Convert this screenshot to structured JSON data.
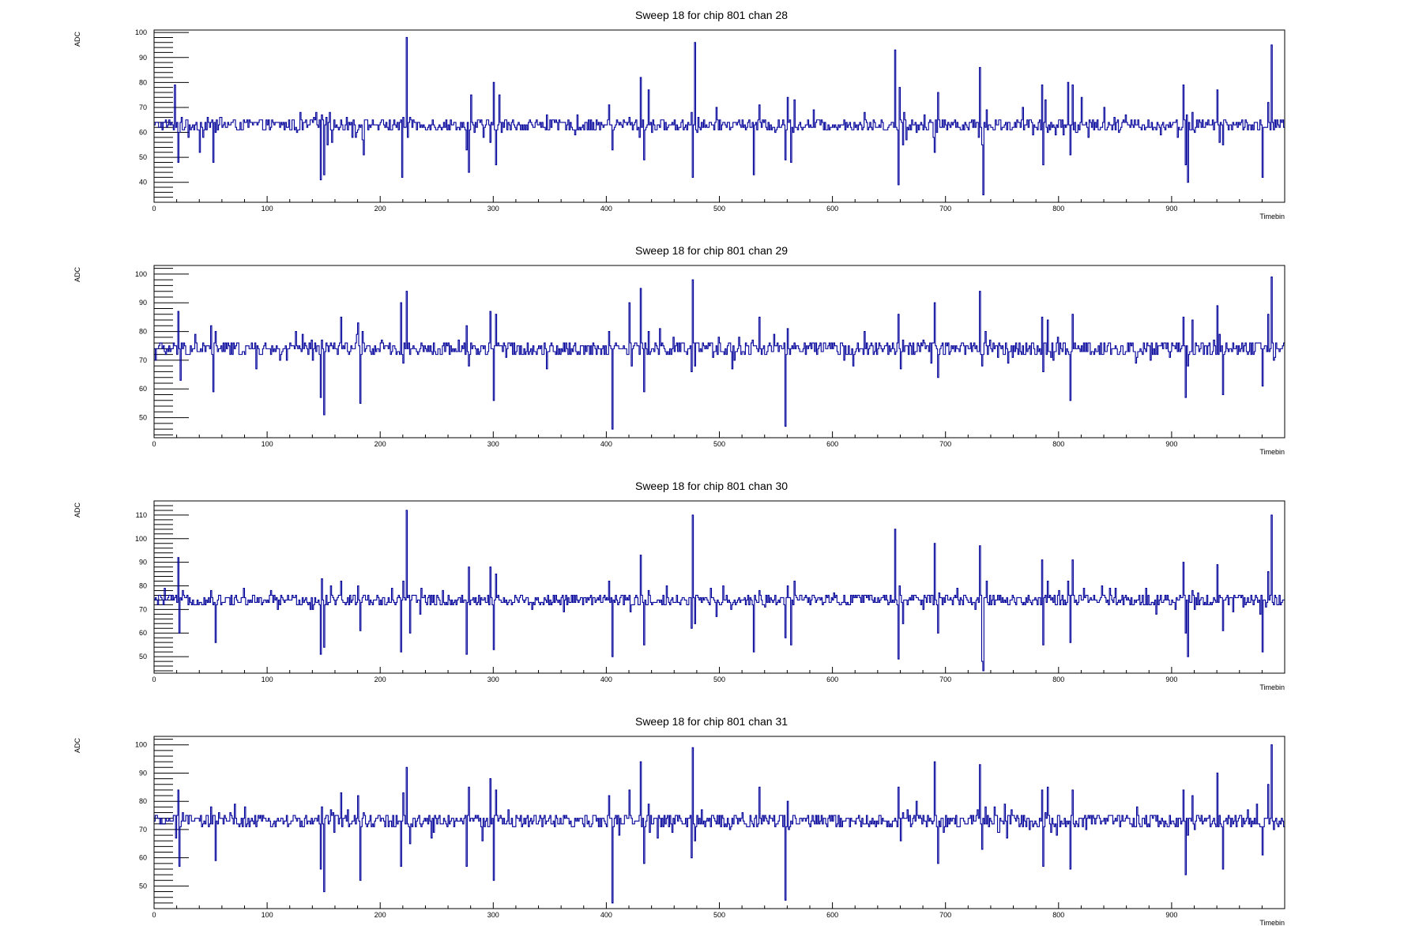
{
  "chart_data": [
    {
      "type": "line",
      "title": "Sweep 18 for chip 801 chan 28",
      "xlabel": "Timebin",
      "ylabel": "ADC",
      "xlim": [
        0,
        1000
      ],
      "ylim": [
        32,
        101
      ],
      "xticks": [
        0,
        100,
        200,
        300,
        400,
        500,
        600,
        700,
        800,
        900
      ],
      "yticks": [
        40,
        50,
        60,
        70,
        80,
        90,
        100
      ],
      "baseline": 63,
      "noise": 1.5,
      "series": [
        {
          "x": [
            0,
            18,
            21,
            22,
            24,
            30,
            40,
            43,
            47,
            52,
            54,
            59,
            62,
            100,
            147,
            148,
            150,
            152,
            153,
            155,
            170,
            178,
            185,
            200,
            218,
            219,
            220,
            223,
            224,
            226,
            230,
            276,
            278,
            280,
            283,
            297,
            300,
            302,
            305,
            307,
            400,
            402,
            405,
            410,
            420,
            430,
            433,
            437,
            440,
            475,
            476,
            478,
            480,
            530,
            535,
            558,
            560,
            563,
            566,
            570,
            600,
            655,
            658,
            659,
            662,
            664,
            690,
            693,
            700,
            730,
            732,
            733,
            736,
            740,
            785,
            786,
            788,
            790,
            800,
            808,
            810,
            812,
            815,
            820,
            900,
            910,
            912,
            914,
            918,
            920,
            940,
            945,
            980,
            985,
            988,
            990
          ],
          "y": [
            63,
            79,
            48,
            60,
            66,
            58,
            52,
            58,
            66,
            48,
            60,
            66,
            64,
            63,
            41,
            67,
            43,
            66,
            55,
            68,
            66,
            58,
            51,
            64,
            65,
            42,
            66,
            98,
            58,
            66,
            64,
            53,
            44,
            75,
            60,
            56,
            80,
            47,
            75,
            60,
            63,
            71,
            53,
            64,
            66,
            82,
            49,
            77,
            60,
            68,
            42,
            96,
            60,
            43,
            71,
            49,
            74,
            48,
            73,
            63,
            63,
            93,
            39,
            78,
            55,
            65,
            52,
            76,
            63,
            86,
            55,
            35,
            69,
            62,
            79,
            47,
            73,
            60,
            65,
            80,
            51,
            79,
            60,
            74,
            63,
            79,
            47,
            40,
            68,
            60,
            77,
            55,
            42,
            72,
            95,
            61
          ]
        }
      ]
    },
    {
      "type": "line",
      "title": "Sweep 18 for chip 801 chan 29",
      "xlabel": "Timebin",
      "ylabel": "ADC",
      "xlim": [
        0,
        1000
      ],
      "ylim": [
        43,
        103
      ],
      "xticks": [
        0,
        100,
        200,
        300,
        400,
        500,
        600,
        700,
        800,
        900
      ],
      "yticks": [
        50,
        60,
        70,
        80,
        90,
        100
      ],
      "baseline": 74,
      "noise": 1.5,
      "series": [
        {
          "x": [
            0,
            10,
            21,
            23,
            26,
            50,
            52,
            54,
            57,
            90,
            147,
            148,
            150,
            152,
            165,
            180,
            182,
            185,
            218,
            220,
            223,
            225,
            276,
            278,
            280,
            297,
            300,
            302,
            305,
            402,
            405,
            408,
            420,
            422,
            430,
            433,
            437,
            440,
            475,
            476,
            478,
            480,
            535,
            558,
            560,
            563,
            600,
            658,
            660,
            662,
            690,
            693,
            700,
            730,
            732,
            735,
            740,
            785,
            786,
            788,
            790,
            810,
            812,
            815,
            820,
            910,
            912,
            914,
            918,
            920,
            940,
            945,
            980,
            985,
            988,
            990
          ],
          "y": [
            74,
            72,
            87,
            63,
            76,
            82,
            59,
            80,
            74,
            67,
            57,
            77,
            51,
            76,
            85,
            83,
            55,
            76,
            90,
            69,
            94,
            76,
            82,
            68,
            76,
            87,
            56,
            86,
            75,
            80,
            46,
            76,
            90,
            68,
            95,
            59,
            80,
            74,
            66,
            98,
            68,
            76,
            85,
            47,
            81,
            74,
            74,
            86,
            67,
            77,
            90,
            64,
            76,
            94,
            68,
            80,
            74,
            85,
            66,
            76,
            84,
            56,
            86,
            74,
            75,
            85,
            57,
            68,
            84,
            72,
            89,
            58,
            61,
            86,
            99,
            70
          ]
        }
      ]
    },
    {
      "type": "line",
      "title": "Sweep 18 for chip 801 chan 30",
      "xlabel": "Timebin",
      "ylabel": "ADC",
      "xlim": [
        0,
        1000
      ],
      "ylim": [
        43,
        116
      ],
      "xticks": [
        0,
        100,
        200,
        300,
        400,
        500,
        600,
        700,
        800,
        900
      ],
      "yticks": [
        50,
        60,
        70,
        80,
        90,
        100,
        110
      ],
      "baseline": 74,
      "noise": 1.5,
      "series": [
        {
          "x": [
            0,
            21,
            22,
            25,
            50,
            54,
            57,
            100,
            147,
            148,
            150,
            152,
            165,
            180,
            182,
            185,
            218,
            220,
            223,
            226,
            276,
            278,
            280,
            297,
            300,
            302,
            305,
            402,
            405,
            408,
            430,
            433,
            437,
            440,
            475,
            476,
            478,
            480,
            530,
            535,
            558,
            560,
            563,
            566,
            600,
            655,
            658,
            659,
            662,
            690,
            693,
            700,
            730,
            732,
            733,
            736,
            740,
            785,
            786,
            788,
            790,
            800,
            808,
            810,
            812,
            815,
            820,
            900,
            910,
            912,
            914,
            918,
            920,
            940,
            945,
            980,
            985,
            988,
            990
          ],
          "y": [
            74,
            92,
            60,
            78,
            78,
            56,
            76,
            74,
            51,
            83,
            54,
            76,
            82,
            80,
            61,
            76,
            52,
            82,
            112,
            60,
            51,
            88,
            74,
            88,
            53,
            85,
            74,
            82,
            50,
            76,
            93,
            55,
            78,
            72,
            62,
            110,
            64,
            76,
            52,
            78,
            58,
            80,
            55,
            82,
            74,
            104,
            49,
            80,
            64,
            98,
            60,
            76,
            97,
            48,
            44,
            82,
            72,
            91,
            55,
            76,
            82,
            78,
            82,
            56,
            91,
            74,
            74,
            74,
            90,
            60,
            50,
            78,
            70,
            89,
            61,
            52,
            86,
            110,
            72
          ]
        }
      ]
    },
    {
      "type": "line",
      "title": "Sweep 18 for chip 801 chan 31",
      "xlabel": "Timebin",
      "ylabel": "ADC",
      "xlim": [
        0,
        1000
      ],
      "ylim": [
        42,
        103
      ],
      "xticks": [
        0,
        100,
        200,
        300,
        400,
        500,
        600,
        700,
        800,
        900
      ],
      "yticks": [
        50,
        60,
        70,
        80,
        90,
        100
      ],
      "baseline": 73,
      "noise": 1.5,
      "series": [
        {
          "x": [
            0,
            21,
            22,
            25,
            50,
            54,
            57,
            100,
            147,
            148,
            150,
            152,
            165,
            180,
            182,
            185,
            218,
            220,
            223,
            226,
            276,
            278,
            280,
            297,
            300,
            302,
            305,
            402,
            405,
            408,
            420,
            430,
            433,
            437,
            440,
            475,
            476,
            478,
            480,
            535,
            558,
            560,
            563,
            600,
            658,
            660,
            662,
            690,
            693,
            700,
            730,
            732,
            735,
            740,
            785,
            786,
            788,
            790,
            810,
            812,
            815,
            820,
            910,
            912,
            914,
            918,
            920,
            940,
            945,
            980,
            985,
            988,
            990
          ],
          "y": [
            73,
            84,
            57,
            76,
            78,
            59,
            76,
            73,
            56,
            78,
            48,
            75,
            83,
            82,
            52,
            76,
            57,
            83,
            92,
            65,
            57,
            85,
            74,
            88,
            52,
            84,
            74,
            82,
            44,
            75,
            84,
            94,
            58,
            79,
            72,
            60,
            99,
            66,
            75,
            85,
            45,
            80,
            73,
            73,
            85,
            66,
            76,
            94,
            58,
            75,
            93,
            63,
            78,
            73,
            84,
            57,
            76,
            85,
            56,
            84,
            73,
            74,
            84,
            54,
            68,
            82,
            70,
            90,
            56,
            61,
            86,
            100,
            70
          ]
        }
      ]
    }
  ]
}
